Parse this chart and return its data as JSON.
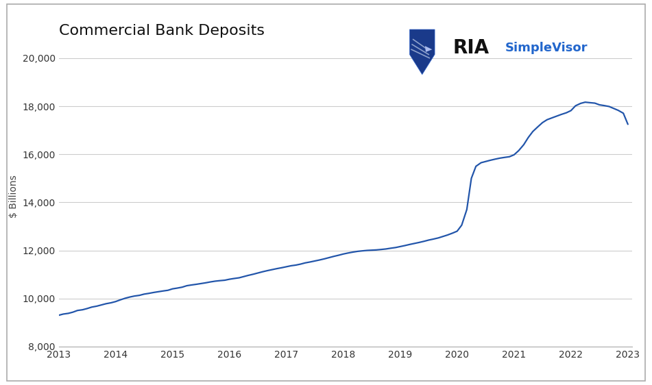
{
  "title": "Commercial Bank Deposits",
  "ylabel": "$ Billions",
  "line_color": "#2255aa",
  "line_width": 1.6,
  "background_color": "#ffffff",
  "grid_color": "#cccccc",
  "xlim": [
    2013.0,
    2023.08
  ],
  "ylim": [
    8000,
    20500
  ],
  "yticks": [
    8000,
    10000,
    12000,
    14000,
    16000,
    18000,
    20000
  ],
  "xticks": [
    2013,
    2014,
    2015,
    2016,
    2017,
    2018,
    2019,
    2020,
    2021,
    2022,
    2023
  ],
  "data_x": [
    2013.0,
    2013.08,
    2013.17,
    2013.25,
    2013.33,
    2013.42,
    2013.5,
    2013.58,
    2013.67,
    2013.75,
    2013.83,
    2013.92,
    2014.0,
    2014.08,
    2014.17,
    2014.25,
    2014.33,
    2014.42,
    2014.5,
    2014.58,
    2014.67,
    2014.75,
    2014.83,
    2014.92,
    2015.0,
    2015.08,
    2015.17,
    2015.25,
    2015.33,
    2015.42,
    2015.5,
    2015.58,
    2015.67,
    2015.75,
    2015.83,
    2015.92,
    2016.0,
    2016.08,
    2016.17,
    2016.25,
    2016.33,
    2016.42,
    2016.5,
    2016.58,
    2016.67,
    2016.75,
    2016.83,
    2016.92,
    2017.0,
    2017.08,
    2017.17,
    2017.25,
    2017.33,
    2017.42,
    2017.5,
    2017.58,
    2017.67,
    2017.75,
    2017.83,
    2017.92,
    2018.0,
    2018.08,
    2018.17,
    2018.25,
    2018.33,
    2018.42,
    2018.5,
    2018.58,
    2018.67,
    2018.75,
    2018.83,
    2018.92,
    2019.0,
    2019.08,
    2019.17,
    2019.25,
    2019.33,
    2019.42,
    2019.5,
    2019.58,
    2019.67,
    2019.75,
    2019.83,
    2019.92,
    2020.0,
    2020.08,
    2020.17,
    2020.25,
    2020.33,
    2020.42,
    2020.5,
    2020.58,
    2020.67,
    2020.75,
    2020.83,
    2020.92,
    2021.0,
    2021.08,
    2021.17,
    2021.25,
    2021.33,
    2021.42,
    2021.5,
    2021.58,
    2021.67,
    2021.75,
    2021.83,
    2021.92,
    2022.0,
    2022.08,
    2022.17,
    2022.25,
    2022.33,
    2022.42,
    2022.5,
    2022.58,
    2022.67,
    2022.75,
    2022.83,
    2022.92,
    2023.0
  ],
  "data_y": [
    9300,
    9350,
    9380,
    9430,
    9500,
    9530,
    9580,
    9640,
    9680,
    9730,
    9780,
    9820,
    9870,
    9940,
    10010,
    10060,
    10100,
    10130,
    10180,
    10210,
    10250,
    10280,
    10310,
    10340,
    10400,
    10430,
    10470,
    10530,
    10560,
    10590,
    10620,
    10650,
    10690,
    10720,
    10740,
    10760,
    10800,
    10830,
    10860,
    10910,
    10960,
    11010,
    11060,
    11110,
    11160,
    11200,
    11240,
    11280,
    11320,
    11360,
    11390,
    11430,
    11480,
    11520,
    11560,
    11600,
    11650,
    11700,
    11750,
    11800,
    11850,
    11890,
    11930,
    11960,
    11980,
    12000,
    12010,
    12020,
    12040,
    12060,
    12090,
    12120,
    12160,
    12200,
    12250,
    12290,
    12330,
    12380,
    12430,
    12470,
    12520,
    12580,
    12640,
    12720,
    12800,
    13050,
    13700,
    15000,
    15500,
    15650,
    15700,
    15750,
    15800,
    15840,
    15870,
    15900,
    15980,
    16150,
    16400,
    16700,
    16950,
    17150,
    17320,
    17440,
    17520,
    17590,
    17660,
    17730,
    17820,
    18020,
    18120,
    18170,
    18150,
    18130,
    18060,
    18030,
    17990,
    17910,
    17830,
    17710,
    17250
  ],
  "ria_text_color": "#111111",
  "simplevisor_color": "#2266cc",
  "title_fontsize": 16,
  "tick_fontsize": 10,
  "ylabel_fontsize": 10
}
